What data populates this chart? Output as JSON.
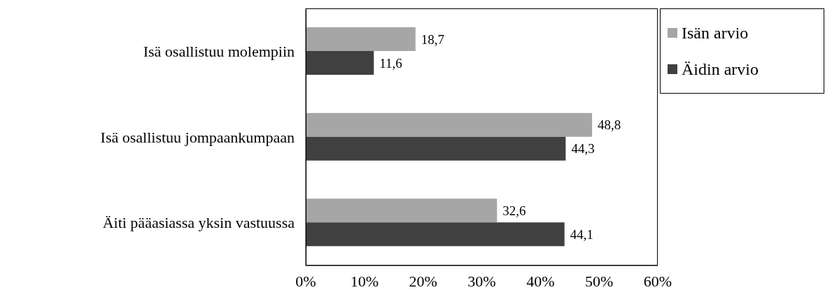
{
  "chart_data": {
    "type": "bar",
    "orientation": "horizontal",
    "categories": [
      "Isä osallistuu molempiin",
      "Isä osallistuu jompaankumpaan",
      "Äiti pääasiassa yksin vastuussa"
    ],
    "series": [
      {
        "name": "Isän arvio",
        "color": "#a6a6a6",
        "values": [
          18.7,
          48.8,
          32.6
        ],
        "value_labels": [
          "18,7",
          "48,8",
          "32,6"
        ]
      },
      {
        "name": "Äidin arvio",
        "color": "#404040",
        "values": [
          11.6,
          44.3,
          44.1
        ],
        "value_labels": [
          "11,6",
          "44,3",
          "44,1"
        ]
      }
    ],
    "xlim": [
      0,
      60
    ],
    "xticks": [
      {
        "value": 0,
        "label": "0%"
      },
      {
        "value": 10,
        "label": "10%"
      },
      {
        "value": 20,
        "label": "20%"
      },
      {
        "value": 30,
        "label": "30%"
      },
      {
        "value": 40,
        "label": "40%"
      },
      {
        "value": 50,
        "label": "50%"
      },
      {
        "value": 60,
        "label": "60%"
      }
    ],
    "grid": false,
    "legend": "top right"
  }
}
